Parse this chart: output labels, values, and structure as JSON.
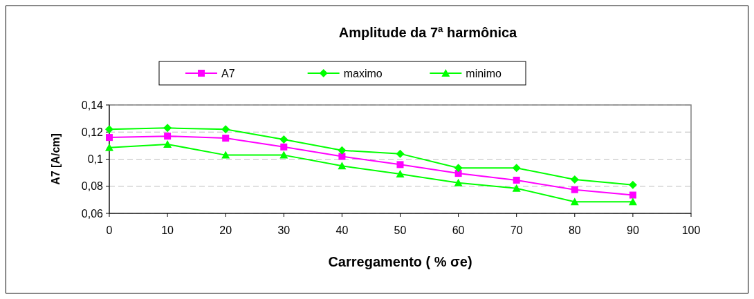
{
  "chart_data": {
    "type": "line",
    "title": "Amplitude da 7ª harmônica",
    "xlabel": "Carregamento ( % σe)",
    "ylabel": "A7 [A/cm]",
    "x": [
      0,
      10,
      20,
      30,
      40,
      50,
      60,
      70,
      80,
      90
    ],
    "series": [
      {
        "name": "A7",
        "color": "#ff00ff",
        "marker": "square",
        "values": [
          0.116,
          0.117,
          0.1155,
          0.109,
          0.102,
          0.096,
          0.0895,
          0.0845,
          0.0775,
          0.0735
        ]
      },
      {
        "name": "maximo",
        "color": "#00ff00",
        "marker": "diamond",
        "values": [
          0.122,
          0.123,
          0.122,
          0.1145,
          0.1065,
          0.104,
          0.0935,
          0.0935,
          0.085,
          0.081
        ]
      },
      {
        "name": "minimo",
        "color": "#00ff00",
        "marker": "triangle",
        "values": [
          0.1085,
          0.111,
          0.103,
          0.103,
          0.095,
          0.089,
          0.0825,
          0.0785,
          0.0685,
          0.0685
        ]
      }
    ],
    "xlim": [
      0,
      100
    ],
    "xticks": [
      0,
      10,
      20,
      30,
      40,
      50,
      60,
      70,
      80,
      90,
      100
    ],
    "ylim": [
      0.06,
      0.14
    ],
    "yticks": [
      {
        "value": 0.06,
        "label": "0,06"
      },
      {
        "value": 0.08,
        "label": "0,08"
      },
      {
        "value": 0.1,
        "label": "0,1"
      },
      {
        "value": 0.12,
        "label": "0,12"
      },
      {
        "value": 0.14,
        "label": "0,14"
      }
    ],
    "grid": "y",
    "legend": "top",
    "line_style": "solid"
  }
}
